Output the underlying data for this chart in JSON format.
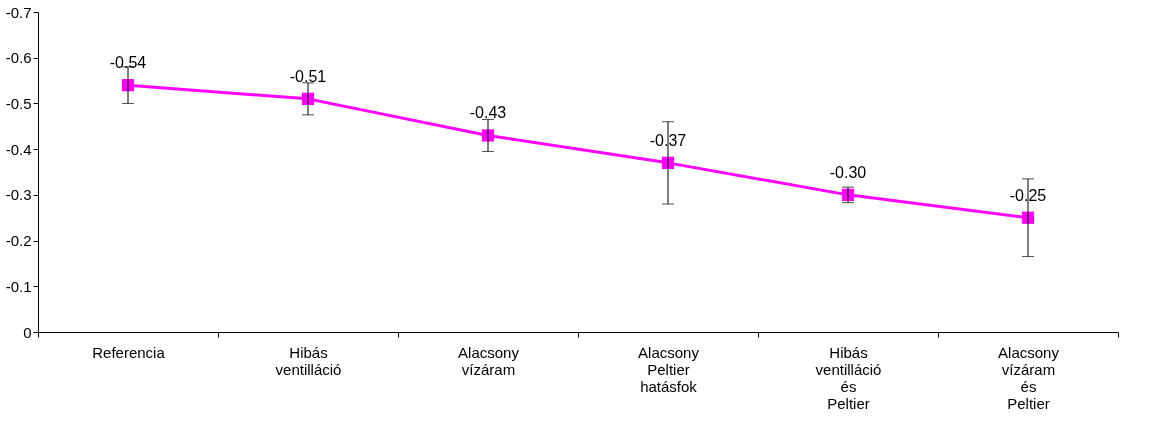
{
  "chart_data": {
    "type": "line",
    "categories": [
      "Referencia",
      "Hibás ventilláció",
      "Alacsony vízáram",
      "Alacsony Peltier hatásfok",
      "Hibás ventilláció és Peltier",
      "Alacsony vízáram és Peltier"
    ],
    "series": [
      {
        "color": "#ff00ff",
        "values": [
          -0.54,
          -0.51,
          -0.43,
          -0.37,
          -0.3,
          -0.25
        ],
        "errors": [
          0.04,
          0.035,
          0.035,
          0.09,
          0.017,
          0.085
        ],
        "value_labels": [
          "-0.54",
          "-0.51",
          "-0.43",
          "-0.37",
          "-0.30",
          "-0.25"
        ]
      }
    ],
    "ylim": [
      0,
      -0.7
    ],
    "yticks": [
      0,
      -0.1,
      -0.2,
      -0.3,
      -0.4,
      -0.5,
      -0.6,
      -0.7
    ],
    "marker": "square",
    "line_style": "solid",
    "grid": false
  }
}
